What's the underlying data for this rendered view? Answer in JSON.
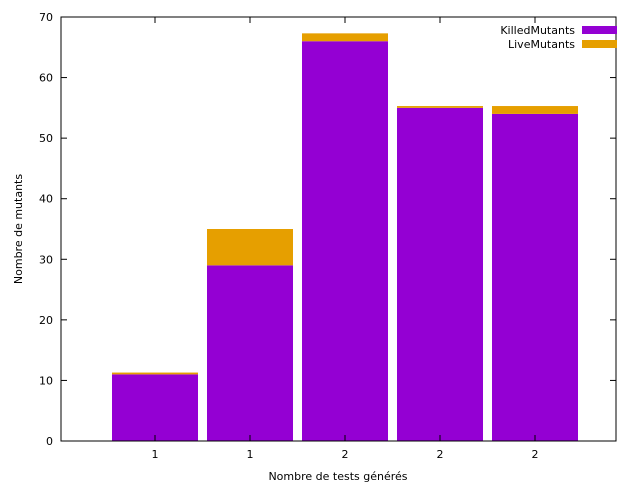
{
  "chart_data": {
    "type": "bar",
    "stacked": true,
    "categories": [
      "1",
      "1",
      "2",
      "2",
      "2"
    ],
    "series": [
      {
        "name": "KilledMutants",
        "values": [
          11,
          29,
          66,
          55,
          54
        ],
        "color": "#9400d3"
      },
      {
        "name": "LiveMutants",
        "values": [
          0.3,
          6,
          1.3,
          0.3,
          1.3
        ],
        "color": "#e69f00"
      }
    ],
    "xlabel": "Nombre de tests générés",
    "ylabel": "Nombre de mutants",
    "ylim": [
      0,
      70
    ],
    "yticks": [
      0,
      10,
      20,
      30,
      40,
      50,
      60,
      70
    ],
    "grid": false,
    "legend": "top-right"
  }
}
